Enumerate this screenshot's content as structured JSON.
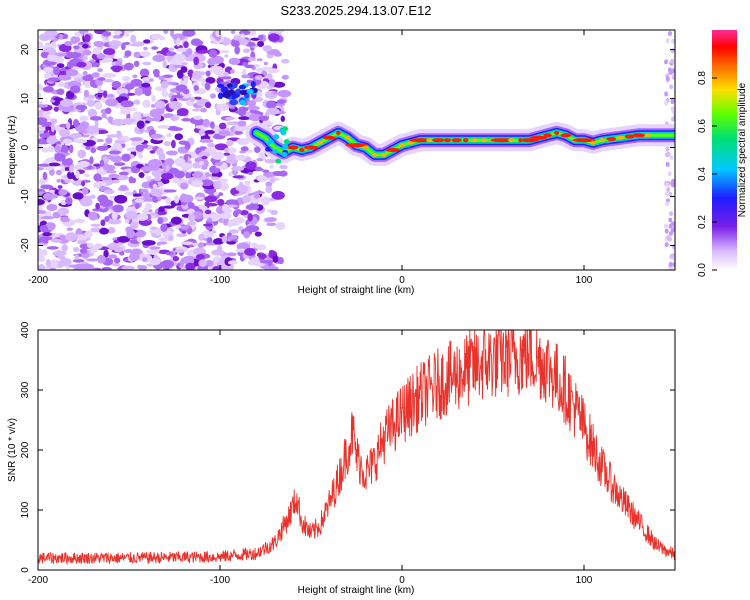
{
  "figure_title": "S233.2025.294.13.07.E12",
  "colors": {
    "snr_line": "#e8322b",
    "background": "#ffffff",
    "axis": "#000000",
    "scatter": "#8a2be2"
  },
  "chart_data": [
    {
      "type": "heatmap",
      "xlabel": "Height of straight line (km)",
      "ylabel": "Frequency (Hz)",
      "xlim": [
        -200,
        150
      ],
      "ylim": [
        -25,
        24
      ],
      "xticks": [
        -200,
        -100,
        0,
        100
      ],
      "xtick_labels": [
        "-200",
        "-100",
        "0",
        "100"
      ],
      "yticks": [
        -20,
        -10,
        0,
        10,
        20
      ],
      "ytick_labels": [
        "-20",
        "-10",
        "0",
        "10",
        "20"
      ],
      "colorbar": {
        "label": "Normalized spectral amplitude",
        "range": [
          0,
          1
        ],
        "ticks": [
          0,
          0.2,
          0.4,
          0.6,
          0.8
        ],
        "tick_labels": [
          "0.0",
          "0.2",
          "0.4",
          "0.6",
          "0.8"
        ]
      },
      "ridge": {
        "x": [
          -80,
          -75,
          -70,
          -65,
          -60,
          -55,
          -50,
          -45,
          -40,
          -35,
          -30,
          -25,
          -20,
          -15,
          -10,
          -5,
          0,
          5,
          10,
          20,
          30,
          40,
          50,
          60,
          70,
          80,
          85,
          90,
          95,
          100,
          105,
          110,
          120,
          130,
          140,
          150
        ],
        "freq": [
          3,
          2,
          0,
          -1,
          0,
          -0.5,
          0,
          1,
          2,
          3,
          2,
          0.5,
          0,
          -1.5,
          -1.5,
          -0.5,
          0.5,
          1,
          1.5,
          1.5,
          1.5,
          1.5,
          1.5,
          1.5,
          1.5,
          2.5,
          3,
          2.5,
          1.5,
          1.5,
          1,
          1.5,
          2,
          2.5,
          2.5,
          2.5
        ]
      },
      "noise_region_x": [
        -200,
        -70
      ],
      "cluster_near": {
        "x": [
          -100,
          -80
        ],
        "freq": [
          9,
          13
        ]
      }
    },
    {
      "type": "line",
      "xlabel": "Height of straight line (km)",
      "ylabel": "SNR (10 * v/v)",
      "xlim": [
        -200,
        150
      ],
      "ylim": [
        0,
        400
      ],
      "xticks": [
        -200,
        -100,
        0,
        100
      ],
      "xtick_labels": [
        "-200",
        "-100",
        "0",
        "100"
      ],
      "yticks": [
        0,
        100,
        200,
        300,
        400
      ],
      "ytick_labels": [
        "0",
        "100",
        "200",
        "300",
        "400"
      ],
      "envelope": {
        "x": [
          -200,
          -150,
          -100,
          -80,
          -70,
          -62,
          -58,
          -55,
          -50,
          -45,
          -40,
          -35,
          -30,
          -27,
          -25,
          -20,
          -15,
          -10,
          0,
          10,
          20,
          30,
          40,
          50,
          60,
          70,
          80,
          90,
          100,
          110,
          120,
          130,
          140,
          150
        ],
        "snr": [
          20,
          20,
          22,
          28,
          45,
          90,
          120,
          80,
          60,
          75,
          110,
          150,
          200,
          230,
          190,
          160,
          180,
          220,
          260,
          290,
          310,
          325,
          340,
          350,
          355,
          360,
          340,
          300,
          240,
          170,
          120,
          80,
          40,
          25
        ],
        "noise_amplitude": 30
      }
    }
  ]
}
